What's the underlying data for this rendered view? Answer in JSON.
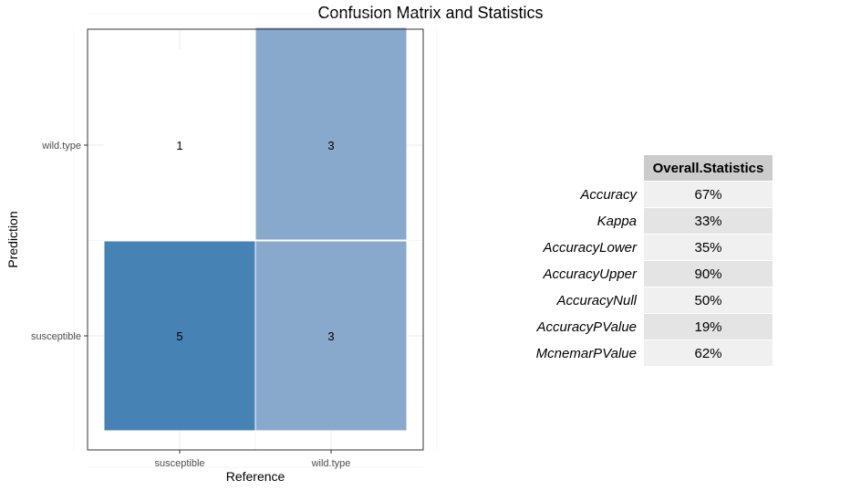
{
  "title": "Confusion Matrix and Statistics",
  "chart_data": {
    "type": "heatmap",
    "xlabel": "Reference",
    "ylabel": "Prediction",
    "x_categories": [
      "susceptible",
      "wild.type"
    ],
    "y_categories": [
      "susceptible",
      "wild.type"
    ],
    "cells": [
      {
        "reference": "susceptible",
        "prediction": "wild.type",
        "label": "1",
        "value": 1,
        "fill": "#ffffff",
        "size": 1.0
      },
      {
        "reference": "wild.type",
        "prediction": "wild.type",
        "label": "3",
        "value": 3,
        "fill": "#88a8cc",
        "size": 1.12
      },
      {
        "reference": "susceptible",
        "prediction": "susceptible",
        "label": "5",
        "value": 5,
        "fill": "#4682b4",
        "size": 1.0
      },
      {
        "reference": "wild.type",
        "prediction": "susceptible",
        "label": "3",
        "value": 3,
        "fill": "#88a8cc",
        "size": 1.0
      }
    ],
    "grid": true
  },
  "stats": {
    "header": "Overall.Statistics",
    "rows": [
      {
        "name": "Accuracy",
        "value": "67%"
      },
      {
        "name": "Kappa",
        "value": "33%"
      },
      {
        "name": "AccuracyLower",
        "value": "35%"
      },
      {
        "name": "AccuracyUpper",
        "value": "90%"
      },
      {
        "name": "AccuracyNull",
        "value": "50%"
      },
      {
        "name": "AccuracyPValue",
        "value": "19%"
      },
      {
        "name": "McnemarPValue",
        "value": "62%"
      }
    ]
  }
}
